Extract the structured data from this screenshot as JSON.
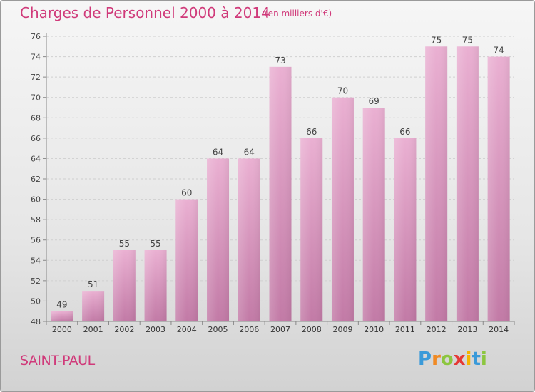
{
  "header": {
    "title": "Charges de Personnel 2000 à 2014",
    "subtitle": "(en milliers d'€)"
  },
  "footer": {
    "commune": "SAINT-PAUL",
    "logo": [
      "P",
      "r",
      "o",
      "x",
      "i",
      "t",
      "i"
    ]
  },
  "colors": {
    "title": "#d03a7a",
    "bar_top": "#eab0d2",
    "bar_bottom": "#c27aa6"
  },
  "chart_data": {
    "type": "bar",
    "title": "Charges de Personnel 2000 à 2014",
    "subtitle": "(en milliers d'€)",
    "xlabel": "",
    "ylabel": "",
    "categories": [
      "2000",
      "2001",
      "2002",
      "2003",
      "2004",
      "2005",
      "2006",
      "2007",
      "2008",
      "2009",
      "2010",
      "2011",
      "2012",
      "2013",
      "2014"
    ],
    "values": [
      49,
      51,
      55,
      55,
      60,
      64,
      64,
      73,
      66,
      70,
      69,
      66,
      75,
      75,
      74
    ],
    "ylim": [
      48,
      76
    ],
    "yticks": [
      48,
      50,
      52,
      54,
      56,
      58,
      60,
      62,
      64,
      66,
      68,
      70,
      72,
      74,
      76
    ],
    "grid": true,
    "data_labels": true
  }
}
